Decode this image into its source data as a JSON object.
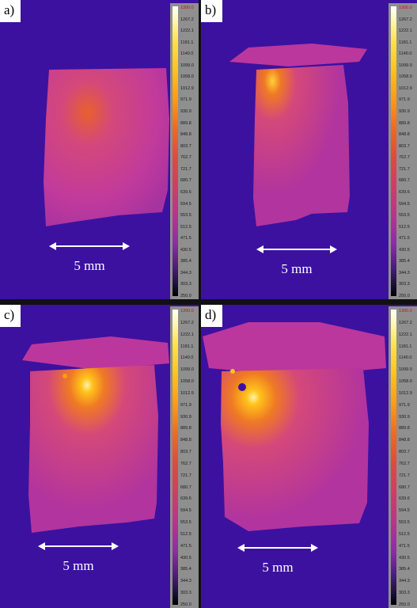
{
  "panels": [
    {
      "label": "a)",
      "scale_text": "5 mm"
    },
    {
      "label": "b)",
      "scale_text": "5 mm"
    },
    {
      "label": "c)",
      "scale_text": "5 mm"
    },
    {
      "label": "d)",
      "scale_text": "5 mm"
    }
  ],
  "colorbar": {
    "ticks": [
      "1300.0",
      "1267.2",
      "1222.1",
      "1181.1",
      "1140.0",
      "1099.0",
      "1058.0",
      "1012.9",
      "971.9",
      "930.9",
      "889.8",
      "848.8",
      "803.7",
      "762.7",
      "721.7",
      "680.7",
      "639.6",
      "594.5",
      "553.5",
      "512.5",
      "471.5",
      "430.5",
      "385.4",
      "344.3",
      "303.3",
      "250.0"
    ],
    "gradient_colors": [
      "#ffffff",
      "#ffe24a",
      "#ff9a14",
      "#df4a3e",
      "#b8348c",
      "#4a1e7a",
      "#000000"
    ]
  },
  "colors": {
    "background": "#3c11a0",
    "sample": "#c8389a",
    "hot_spot": "#ffd23c",
    "scale_bar": "#ffffff"
  }
}
